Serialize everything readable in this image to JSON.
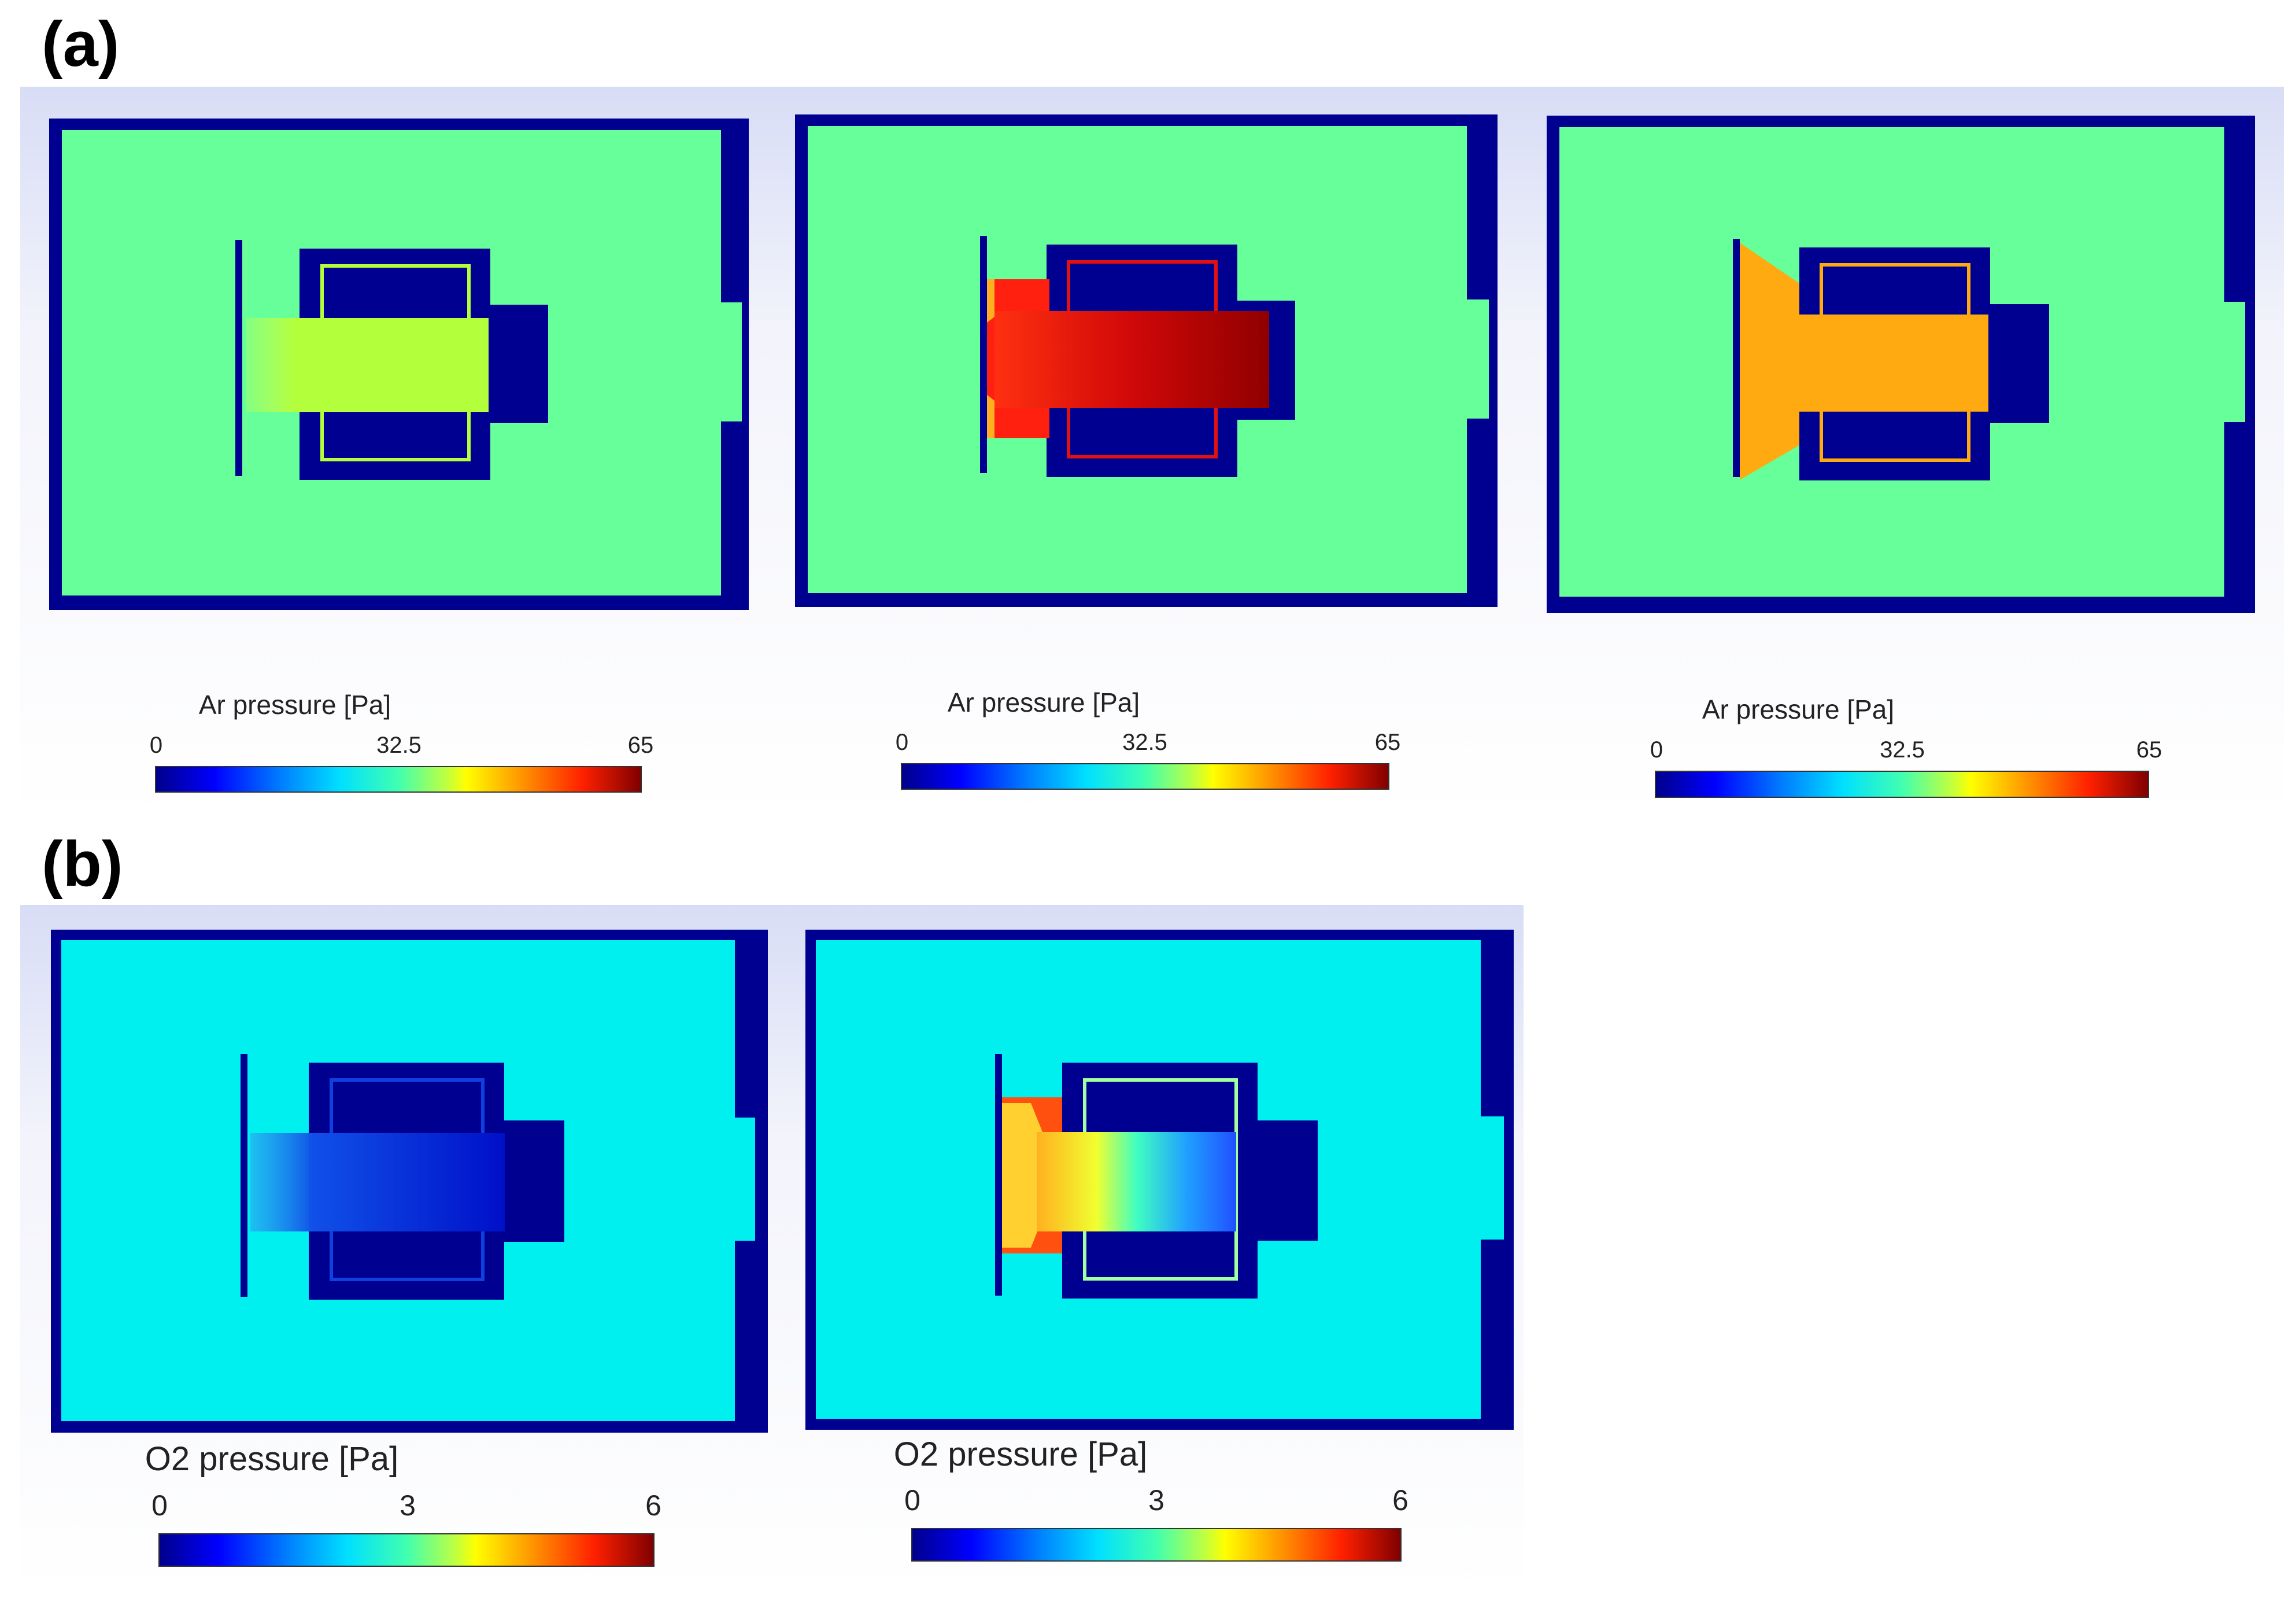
{
  "panel_labels": {
    "a": "(a)",
    "b": "(b)"
  },
  "colormap": [
    "#00008c",
    "#0000ff",
    "#0080ff",
    "#00e0ff",
    "#40ffb0",
    "#c0ff40",
    "#ffff00",
    "#ff9000",
    "#ff2000",
    "#800000"
  ],
  "section_a": {
    "frames": [
      {
        "background_color": "#66ff99",
        "column_color": "#b4ff3c",
        "column_style": "uniform"
      },
      {
        "background_color": "#66ff99",
        "column_color": "#e31010",
        "column_style": "red-gradient"
      },
      {
        "background_color": "#66ff99",
        "column_color": "#ffaa10",
        "column_style": "uniform"
      }
    ],
    "colorbars": [
      {
        "title": "Ar pressure [Pa]",
        "min": "0",
        "mid": "32.5",
        "max": "65"
      },
      {
        "title": "Ar pressure [Pa]",
        "min": "0",
        "mid": "32.5",
        "max": "65"
      },
      {
        "title": "Ar pressure [Pa]",
        "min": "0",
        "mid": "32.5",
        "max": "65"
      }
    ]
  },
  "section_b": {
    "frames": [
      {
        "background_color": "#00f0f0",
        "column_color": "#1030e0",
        "column_style": "blue"
      },
      {
        "background_color": "#00f0f0",
        "column_color": "#ffc020",
        "column_style": "yellow-to-blue"
      }
    ],
    "colorbars": [
      {
        "title": "O2 pressure [Pa]",
        "min": "0",
        "mid": "3",
        "max": "6"
      },
      {
        "title": "O2 pressure [Pa]",
        "min": "0",
        "mid": "3",
        "max": "6"
      }
    ]
  }
}
